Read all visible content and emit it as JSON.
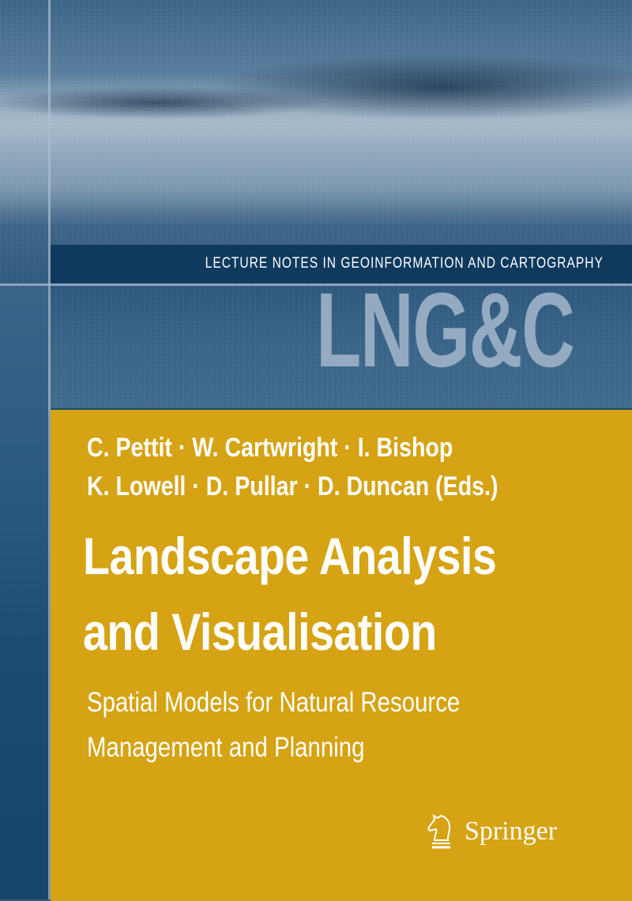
{
  "series": {
    "name": "LECTURE NOTES IN GEOINFORMATION AND CARTOGRAPHY",
    "abbreviation": "LNG&C"
  },
  "book": {
    "authors_line1": "C. Pettit · W. Cartwright · I. Bishop",
    "authors_line2": "K. Lowell · D. Pullar · D. Duncan (Eds.)",
    "title_line1": "Landscape Analysis",
    "title_line2": "and Visualisation",
    "subtitle_line1": "Spatial Models for Natural Resource",
    "subtitle_line2": "Management and Planning"
  },
  "publisher": {
    "name": "Springer",
    "logo_icon": "knight-horse-icon"
  },
  "colors": {
    "accent_yellow": "#d5a313",
    "navy": "#0f3a5e"
  }
}
